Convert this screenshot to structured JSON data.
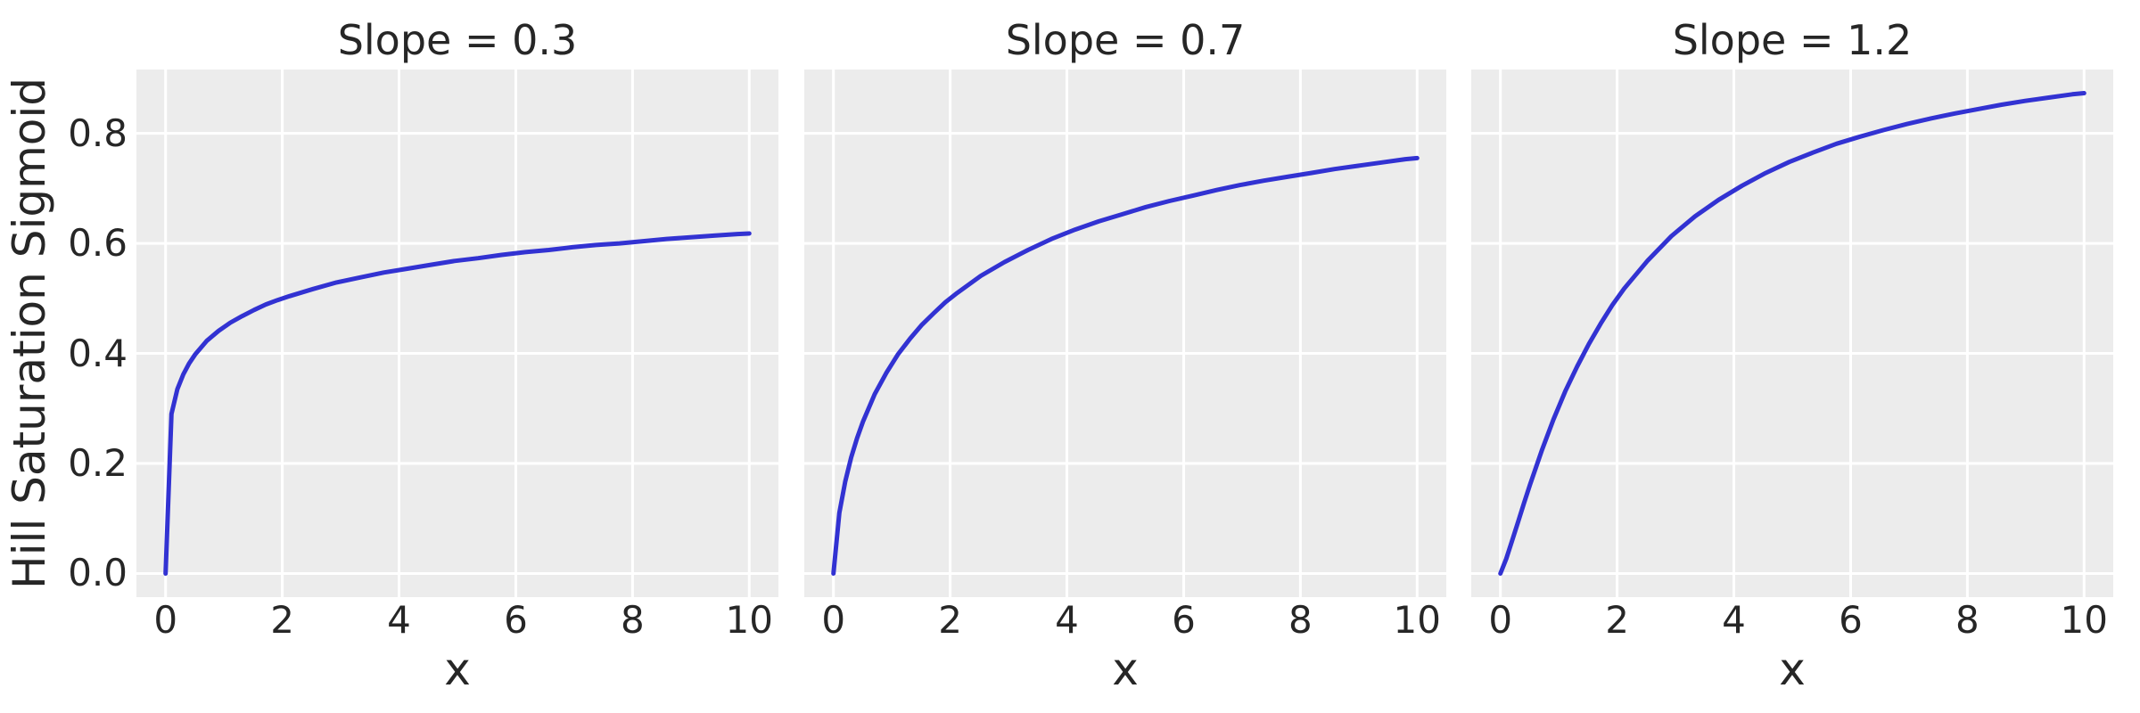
{
  "figure": {
    "background": "#ffffff",
    "axes_background": "#ececec",
    "grid_color": "#ffffff",
    "text_color": "#262626",
    "line_color": "#3232d2"
  },
  "chart_data": [
    {
      "type": "line",
      "title": "Slope = 0.3",
      "xlabel": "x",
      "ylabel": "Hill Saturation Sigmoid",
      "xlim": [
        -0.5,
        10.5
      ],
      "ylim": [
        -0.043,
        0.916
      ],
      "grid": true,
      "legend": false,
      "xticks": {
        "values": [
          0,
          2,
          4,
          6,
          8,
          10
        ],
        "labels": [
          "0",
          "2",
          "4",
          "6",
          "8",
          "10"
        ]
      },
      "yticks": {
        "values": [
          0.0,
          0.2,
          0.4,
          0.6,
          0.8
        ],
        "labels": [
          "0.0",
          "0.2",
          "0.4",
          "0.6",
          "0.8"
        ]
      },
      "series": [
        {
          "name": "Slope = 0.3",
          "color": "#3232d2",
          "x": [
            0,
            0.101,
            0.202,
            0.303,
            0.404,
            0.505,
            0.707,
            0.909,
            1.111,
            1.313,
            1.515,
            1.717,
            1.919,
            2.121,
            2.525,
            2.929,
            3.333,
            3.737,
            4.141,
            4.545,
            4.949,
            5.354,
            5.758,
            6.162,
            6.566,
            6.97,
            7.374,
            7.778,
            8.182,
            8.586,
            8.99,
            9.394,
            9.798,
            10
          ],
          "y": [
            0,
            0.29,
            0.335,
            0.362,
            0.382,
            0.398,
            0.423,
            0.441,
            0.456,
            0.468,
            0.479,
            0.489,
            0.497,
            0.504,
            0.517,
            0.529,
            0.538,
            0.547,
            0.554,
            0.561,
            0.568,
            0.573,
            0.579,
            0.584,
            0.588,
            0.593,
            0.597,
            0.6,
            0.604,
            0.608,
            0.611,
            0.614,
            0.617,
            0.618
          ]
        }
      ]
    },
    {
      "type": "line",
      "title": "Slope = 0.7",
      "xlabel": "x",
      "ylabel": "",
      "xlim": [
        -0.5,
        10.5
      ],
      "ylim": [
        -0.043,
        0.916
      ],
      "grid": true,
      "legend": false,
      "xticks": {
        "values": [
          0,
          2,
          4,
          6,
          8,
          10
        ],
        "labels": [
          "0",
          "2",
          "4",
          "6",
          "8",
          "10"
        ]
      },
      "yticks": {
        "values": [
          0.0,
          0.2,
          0.4,
          0.6,
          0.8
        ],
        "labels": [
          "0.0",
          "0.2",
          "0.4",
          "0.6",
          "0.8"
        ]
      },
      "series": [
        {
          "name": "Slope = 0.7",
          "color": "#3232d2",
          "x": [
            0,
            0.101,
            0.202,
            0.303,
            0.404,
            0.505,
            0.707,
            0.909,
            1.111,
            1.313,
            1.515,
            1.717,
            1.919,
            2.121,
            2.525,
            2.929,
            3.333,
            3.737,
            4.141,
            4.545,
            4.949,
            5.354,
            5.758,
            6.162,
            6.566,
            6.97,
            7.374,
            7.778,
            8.182,
            8.586,
            8.99,
            9.394,
            9.798,
            10
          ],
          "y": [
            0,
            0.11,
            0.167,
            0.211,
            0.246,
            0.276,
            0.326,
            0.365,
            0.399,
            0.427,
            0.452,
            0.473,
            0.493,
            0.51,
            0.541,
            0.566,
            0.588,
            0.608,
            0.625,
            0.64,
            0.653,
            0.666,
            0.677,
            0.687,
            0.697,
            0.706,
            0.714,
            0.721,
            0.728,
            0.735,
            0.741,
            0.747,
            0.753,
            0.755
          ]
        }
      ]
    },
    {
      "type": "line",
      "title": "Slope = 1.2",
      "xlabel": "x",
      "ylabel": "",
      "xlim": [
        -0.5,
        10.5
      ],
      "ylim": [
        -0.043,
        0.916
      ],
      "grid": true,
      "legend": false,
      "xticks": {
        "values": [
          0,
          2,
          4,
          6,
          8,
          10
        ],
        "labels": [
          "0",
          "2",
          "4",
          "6",
          "8",
          "10"
        ]
      },
      "yticks": {
        "values": [
          0.0,
          0.2,
          0.4,
          0.6,
          0.8
        ],
        "labels": [
          "0.0",
          "0.2",
          "0.4",
          "0.6",
          "0.8"
        ]
      },
      "series": [
        {
          "name": "Slope = 1.2",
          "color": "#3232d2",
          "x": [
            0,
            0.101,
            0.202,
            0.303,
            0.404,
            0.505,
            0.707,
            0.909,
            1.111,
            1.313,
            1.515,
            1.717,
            1.919,
            2.121,
            2.525,
            2.929,
            3.333,
            3.737,
            4.141,
            4.545,
            4.949,
            5.354,
            5.758,
            6.162,
            6.566,
            6.97,
            7.374,
            7.778,
            8.182,
            8.586,
            8.99,
            9.394,
            9.798,
            10
          ],
          "y": [
            0,
            0.027,
            0.06,
            0.094,
            0.128,
            0.161,
            0.223,
            0.28,
            0.331,
            0.376,
            0.417,
            0.454,
            0.488,
            0.518,
            0.569,
            0.613,
            0.649,
            0.679,
            0.705,
            0.728,
            0.748,
            0.765,
            0.781,
            0.794,
            0.806,
            0.817,
            0.827,
            0.836,
            0.844,
            0.852,
            0.859,
            0.865,
            0.871,
            0.873
          ]
        }
      ]
    }
  ]
}
